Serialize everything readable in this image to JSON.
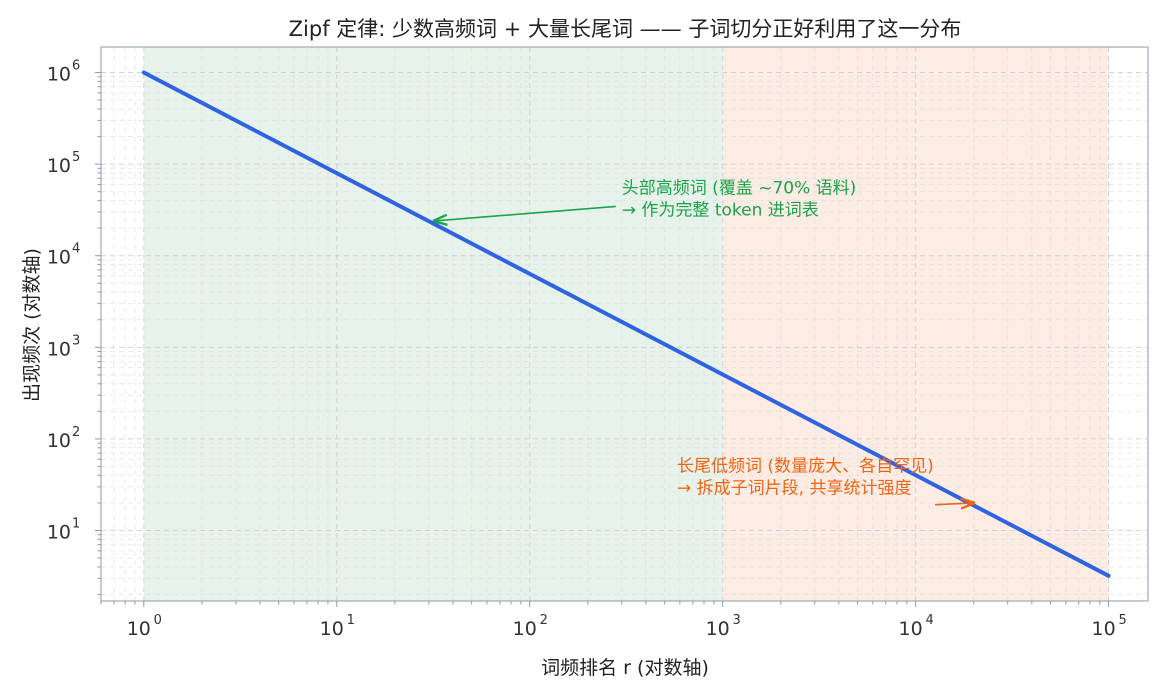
{
  "chart_data": {
    "type": "line",
    "title": "Zipf 定律: 少数高频词 + 大量长尾词 —— 子词切分正好利用了这一分布",
    "xlabel": "词频排名 r (对数轴)",
    "ylabel": "出现频次 (对数轴)",
    "xscale": "log",
    "yscale": "log",
    "xlim": [
      0.6,
      160000
    ],
    "ylim": [
      1.7,
      1900000
    ],
    "grid": true,
    "x_ticks": [
      {
        "base": "10",
        "exp": "0",
        "value": 1
      },
      {
        "base": "10",
        "exp": "1",
        "value": 10
      },
      {
        "base": "10",
        "exp": "2",
        "value": 100
      },
      {
        "base": "10",
        "exp": "3",
        "value": 1000
      },
      {
        "base": "10",
        "exp": "4",
        "value": 10000
      },
      {
        "base": "10",
        "exp": "5",
        "value": 100000
      }
    ],
    "y_ticks": [
      {
        "base": "10",
        "exp": "1",
        "value": 10
      },
      {
        "base": "10",
        "exp": "2",
        "value": 100
      },
      {
        "base": "10",
        "exp": "3",
        "value": 1000
      },
      {
        "base": "10",
        "exp": "4",
        "value": 10000
      },
      {
        "base": "10",
        "exp": "5",
        "value": 100000
      },
      {
        "base": "10",
        "exp": "6",
        "value": 1000000
      }
    ],
    "series": [
      {
        "color": "#2f63e0",
        "x": [
          1,
          100000
        ],
        "y": [
          1000000,
          3.2
        ]
      }
    ],
    "regions": [
      {
        "x_from": 1,
        "x_to": 1000,
        "color": "#cfe8d5"
      },
      {
        "x_from": 1000,
        "x_to": 100000,
        "color": "#fbd9c8"
      }
    ],
    "annotations": [
      {
        "lines": [
          "头部高频词 (覆盖 ~70% 语料)",
          "→ 作为完整 token 进词表"
        ],
        "color": "#1aa34a",
        "text_at": [
          300,
          60000
        ],
        "arrow_to": [
          32,
          24000
        ]
      },
      {
        "lines": [
          "长尾低频词 (数量庞大、各自罕见)",
          "→ 拆成子词片段, 共享统计强度"
        ],
        "color": "#f06414",
        "text_at": [
          580,
          55
        ],
        "arrow_to": [
          20000,
          20
        ]
      }
    ]
  }
}
